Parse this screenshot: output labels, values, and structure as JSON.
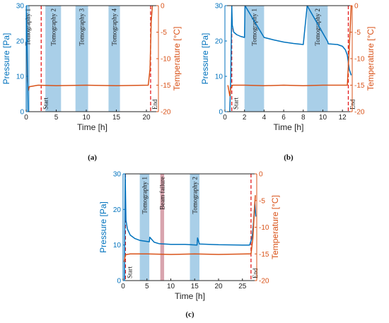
{
  "colors": {
    "pressure": "#0072BD",
    "temperature": "#D95319",
    "band_blue": "#a9cfe8",
    "band_red": "#d8a4ae",
    "dashed": "#e41a1c"
  },
  "chart_data": [
    {
      "type": "line",
      "caption": "(a)",
      "xlabel": "Time [h]",
      "ylabel_left": "Pressure [Pa]",
      "ylabel_right": "Temperature [°C]",
      "xlim": [
        0,
        22
      ],
      "ylim_left": [
        0,
        30
      ],
      "ylim_right": [
        -20,
        0
      ],
      "xticks": [
        0,
        5,
        10,
        15,
        20
      ],
      "yticks_left": [
        0,
        10,
        20,
        30
      ],
      "yticks_right": [
        0,
        -5,
        -10,
        -15,
        -20
      ],
      "bands": [
        {
          "label": "Tomography 1",
          "x0": 0.0,
          "x1": 0.6,
          "color": "blue"
        },
        {
          "label": "Tomography 2",
          "x0": 3.2,
          "x1": 5.8,
          "color": "blue"
        },
        {
          "label": "Tomography 3",
          "x0": 8.2,
          "x1": 10.3,
          "color": "blue"
        },
        {
          "label": "Tomography 4",
          "x0": 13.7,
          "x1": 15.6,
          "color": "blue"
        }
      ],
      "markers": [
        {
          "label": "Start",
          "x": 2.5
        },
        {
          "label": "End",
          "x": 20.7
        }
      ],
      "series": [
        {
          "axis": "right",
          "color": "temperature",
          "x": [
            0,
            0.1,
            0.2,
            0.35,
            0.5,
            2,
            5,
            10,
            15,
            20.3,
            20.6,
            20.8,
            21
          ],
          "y": [
            -1,
            -6,
            -14,
            -16,
            -15.3,
            -15,
            -15.1,
            -15,
            -15.1,
            -15,
            -12,
            -3,
            0
          ]
        },
        {
          "axis": "left",
          "color": "pressure",
          "x": [
            0,
            0.1,
            0.2,
            0.35
          ],
          "y": [
            30,
            22,
            14,
            0
          ]
        }
      ]
    },
    {
      "type": "line",
      "caption": "(b)",
      "xlabel": "Time [h]",
      "ylabel_left": "Pressure [Pa]",
      "ylabel_right": "Temperature [°C]",
      "xlim": [
        0,
        13
      ],
      "ylim_left": [
        0,
        30
      ],
      "ylim_right": [
        -20,
        0
      ],
      "xticks": [
        0,
        2,
        4,
        6,
        8,
        10,
        12
      ],
      "yticks_left": [
        0,
        10,
        20,
        30
      ],
      "yticks_right": [
        0,
        -5,
        -10,
        -15,
        -20
      ],
      "bands": [
        {
          "label": "Tomography 1",
          "x0": 2.0,
          "x1": 4.0,
          "color": "blue"
        },
        {
          "label": "Tomography 2",
          "x0": 8.4,
          "x1": 10.5,
          "color": "blue"
        }
      ],
      "markers": [
        {
          "label": "Start",
          "x": 0.7
        },
        {
          "label": "End",
          "x": 12.6
        }
      ],
      "series": [
        {
          "axis": "left",
          "color": "pressure",
          "x": [
            0.5,
            0.6,
            0.7,
            0.75,
            0.9,
            1.2,
            1.6,
            2.0,
            2.05,
            4.0,
            5.0,
            6.0,
            7.0,
            8.0,
            8.4,
            10.5,
            10.55,
            11.0,
            11.5,
            12.0,
            12.3,
            12.5,
            12.7,
            12.9
          ],
          "y": [
            0,
            10,
            30,
            24.5,
            22.5,
            21.8,
            21.3,
            21.0,
            30,
            21.0,
            20.3,
            19.7,
            19.3,
            19.0,
            30,
            19.8,
            19.2,
            19.1,
            19.0,
            18.5,
            17.5,
            16.0,
            12.0,
            10.3
          ]
        },
        {
          "axis": "right",
          "color": "temperature",
          "x": [
            0.3,
            0.5,
            0.6,
            0.8,
            2,
            4,
            6,
            8,
            10,
            12,
            12.5,
            12.7,
            12.9
          ],
          "y": [
            -15,
            -17,
            -15.5,
            -15,
            -15,
            -15.1,
            -15,
            -15.1,
            -15,
            -15,
            -15,
            -8,
            0
          ]
        }
      ]
    },
    {
      "type": "line",
      "caption": "(c)",
      "xlabel": "Time [h]",
      "ylabel_left": "Pressure [Pa]",
      "ylabel_right": "Temperature [°C]",
      "xlim": [
        0,
        28
      ],
      "ylim_left": [
        0,
        30
      ],
      "ylim_right": [
        -20,
        0
      ],
      "xticks": [
        0,
        5,
        10,
        15,
        20,
        25
      ],
      "yticks_left": [
        0,
        10,
        20,
        30
      ],
      "yticks_right": [
        0,
        -5,
        -10,
        -15,
        -20
      ],
      "bands": [
        {
          "label": "Tomography 1",
          "x0": 3.5,
          "x1": 5.5,
          "color": "blue"
        },
        {
          "label": "Beam failure",
          "x0": 7.8,
          "x1": 8.6,
          "color": "red"
        },
        {
          "label": "Tomography 2",
          "x0": 14.0,
          "x1": 16.0,
          "color": "blue"
        }
      ],
      "markers": [
        {
          "label": "Start",
          "x": 0.5
        },
        {
          "label": "End",
          "x": 26.8
        }
      ],
      "series": [
        {
          "axis": "left",
          "color": "pressure",
          "x": [
            0.3,
            0.45,
            0.6,
            0.9,
            1.5,
            2.5,
            3.5,
            4.0,
            5.5,
            5.6,
            6.5,
            7.5,
            10,
            13,
            14.2,
            15.5,
            15.6,
            16.0,
            20,
            25,
            26.5,
            27.0,
            27.3,
            27.6,
            27.8
          ],
          "y": [
            0,
            30,
            17,
            14.5,
            12.8,
            11.8,
            11.3,
            11.2,
            10.9,
            12.2,
            10.8,
            10.4,
            10.2,
            10.2,
            10.1,
            10.0,
            12.0,
            10.3,
            10.1,
            10.0,
            10.0,
            12,
            16,
            22,
            18
          ]
        },
        {
          "axis": "right",
          "color": "temperature",
          "x": [
            0.2,
            0.5,
            0.8,
            1.5,
            5,
            10,
            15,
            20,
            26,
            26.8,
            27.2,
            27.5,
            27.7
          ],
          "y": [
            -16.5,
            -15.2,
            -15.1,
            -15,
            -15,
            -15.1,
            -15,
            -15.1,
            -15,
            -15,
            -12,
            -7,
            -4
          ]
        }
      ]
    }
  ]
}
